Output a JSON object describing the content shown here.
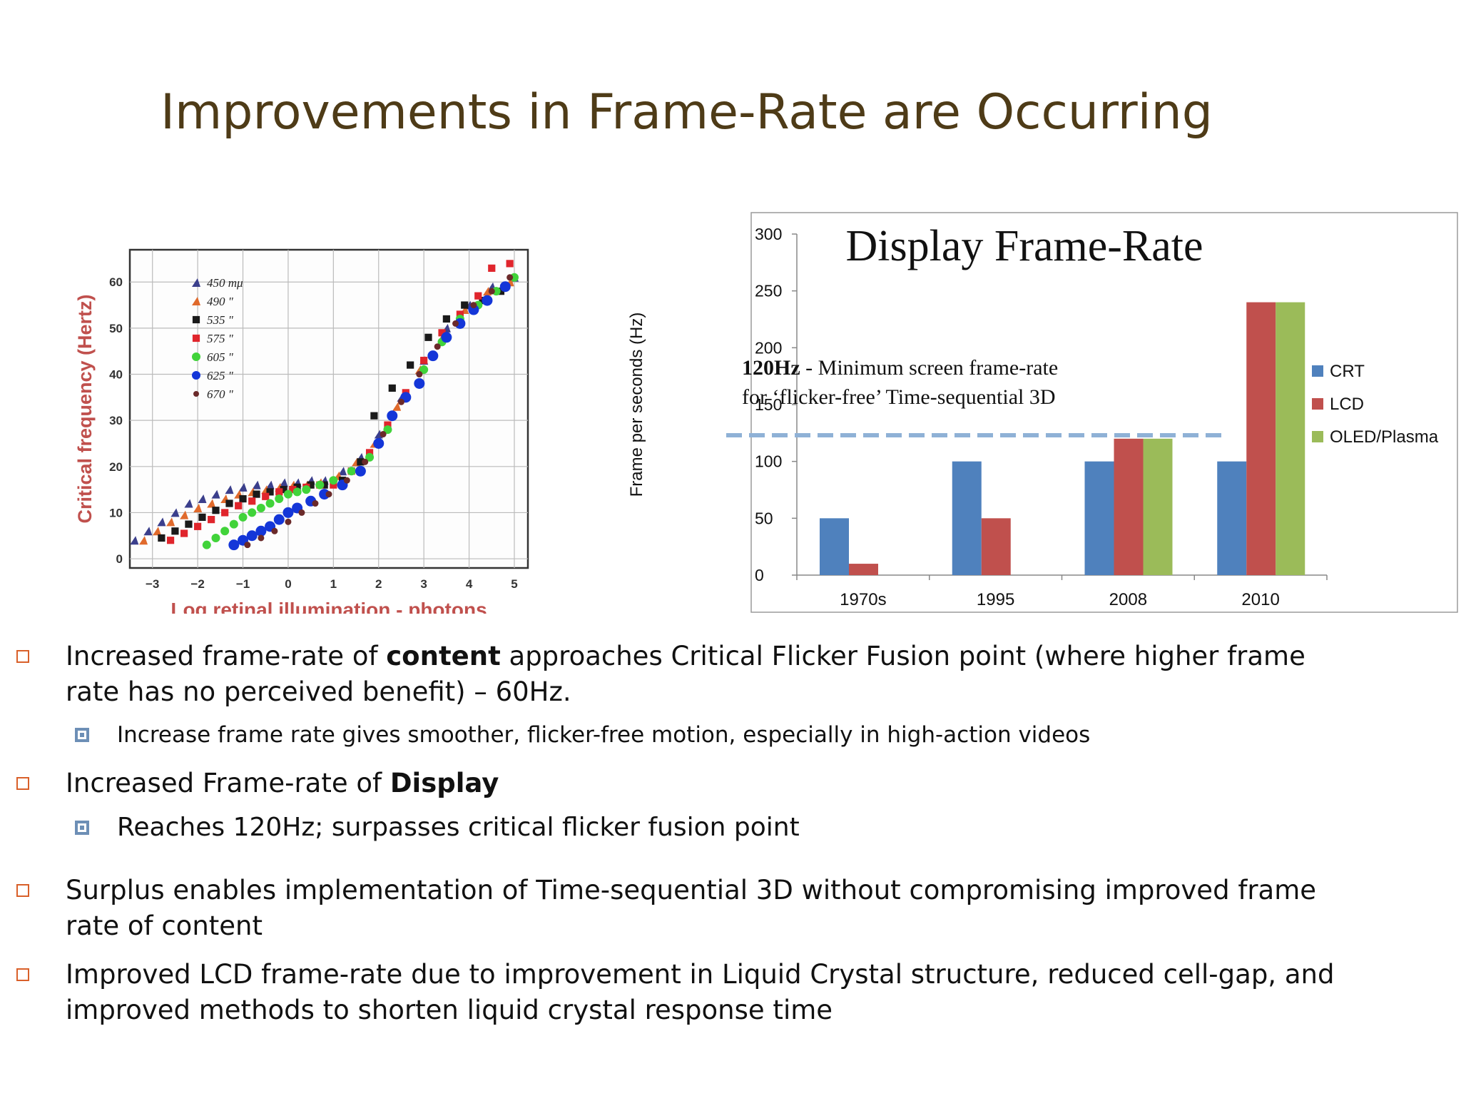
{
  "slide": {
    "title": "Improvements in Frame-Rate are Occurring"
  },
  "colors": {
    "title": "#4e3b17",
    "crt": "#4f81bd",
    "lcd": "#c0504d",
    "oled": "#9bbb59",
    "threshold": "#8fb1d6",
    "bullet_l1": "#d9602a",
    "bullet_l2": "#6d8fb6"
  },
  "bullets": [
    {
      "level": 1,
      "pre": "Increased frame-rate of ",
      "bold": "content",
      "post": " approaches Critical Flicker Fusion point (where higher frame rate has no perceived benefit) – 60Hz."
    },
    {
      "level": 2,
      "pre": "Increase frame rate gives smoother, flicker-free motion, especially in high-action videos",
      "bold": "",
      "post": ""
    },
    {
      "level": 1,
      "pre": "Increased Frame-rate of ",
      "bold": "Display",
      "post": ""
    },
    {
      "level": 2,
      "pre": "Reaches 120Hz; surpasses critical flicker fusion point",
      "bold": "",
      "post": ""
    },
    {
      "level": 1,
      "pre": "Surplus enables implementation of Time-sequential 3D without compromising improved frame rate of content",
      "bold": "",
      "post": ""
    },
    {
      "level": 1,
      "pre": "Improved LCD frame-rate due to improvement in Liquid Crystal structure, reduced cell-gap, and improved methods to shorten liquid crystal response time",
      "bold": "",
      "post": ""
    }
  ],
  "chart_data": [
    {
      "type": "scatter",
      "title": "",
      "xlabel": "Log retinal illumination - photons",
      "ylabel": "Critical frequency (Hertz)",
      "xlim": [
        -3.5,
        5.3
      ],
      "ylim": [
        -2,
        67
      ],
      "x_ticks": [
        -3,
        -2,
        -1,
        0,
        1,
        2,
        3,
        4,
        5
      ],
      "x_tick_labels": [
        "−3",
        "−2",
        "−1",
        "0",
        "1",
        "2",
        "3",
        "4",
        "5"
      ],
      "y_ticks": [
        0,
        10,
        20,
        30,
        40,
        50,
        60
      ],
      "grid": true,
      "legend_position": "top-left",
      "series": [
        {
          "name": "450 mμ",
          "marker": "triangle",
          "color": "#3b3f8c",
          "x": [
            -3.4,
            -3.1,
            -2.8,
            -2.5,
            -2.2,
            -1.9,
            -1.6,
            -1.3,
            -1.0,
            -0.7,
            -0.4,
            -0.1,
            0.2,
            0.5,
            0.8,
            1.2,
            1.6,
            2.0,
            2.5,
            3.0,
            3.5,
            4.0,
            4.5,
            5.0
          ],
          "y": [
            4,
            6,
            8,
            10,
            12,
            13,
            14,
            15,
            15.5,
            16,
            16,
            16.5,
            16.5,
            17,
            17,
            19,
            22,
            27,
            35,
            43,
            50,
            55,
            59,
            61
          ]
        },
        {
          "name": "490 \"",
          "marker": "triangle",
          "color": "#e06a2c",
          "x": [
            -3.2,
            -2.9,
            -2.6,
            -2.3,
            -2.0,
            -1.7,
            -1.4,
            -1.1,
            -0.8,
            -0.5,
            -0.2,
            0.1,
            0.4,
            0.7,
            1.1,
            1.5,
            1.9,
            2.4,
            2.9,
            3.4,
            3.9,
            4.4,
            4.9
          ],
          "y": [
            4,
            6,
            8,
            9.5,
            11,
            12,
            13,
            14,
            14.5,
            15,
            15.5,
            16,
            16,
            16.5,
            18,
            21,
            25,
            33,
            41,
            48,
            54,
            58,
            60
          ]
        },
        {
          "name": "535 \"",
          "marker": "square",
          "color": "#1a1a1a",
          "x": [
            -2.8,
            -2.5,
            -2.2,
            -1.9,
            -1.6,
            -1.3,
            -1.0,
            -0.7,
            -0.4,
            -0.1,
            0.2,
            0.5,
            0.8,
            1.2,
            1.6,
            1.9,
            2.3,
            2.7,
            3.1,
            3.5,
            3.9,
            4.3,
            4.7
          ],
          "y": [
            4.5,
            6,
            7.5,
            9,
            10.5,
            12,
            13,
            14,
            14.5,
            15,
            15.5,
            16,
            16,
            17,
            21,
            31,
            37,
            42,
            48,
            52,
            55,
            56,
            58
          ]
        },
        {
          "name": "575 \"",
          "marker": "square",
          "color": "#e0252c",
          "x": [
            -2.6,
            -2.3,
            -2.0,
            -1.7,
            -1.4,
            -1.1,
            -0.8,
            -0.5,
            -0.2,
            0.1,
            0.4,
            0.7,
            1.0,
            1.4,
            1.8,
            2.2,
            2.6,
            3.0,
            3.4,
            3.8,
            4.2,
            4.5,
            4.9
          ],
          "y": [
            4,
            5.5,
            7,
            8.5,
            10,
            11.5,
            12.5,
            13.5,
            14.5,
            15,
            15.5,
            16,
            16,
            19,
            23,
            29,
            36,
            43,
            49,
            53,
            57,
            63,
            64
          ]
        },
        {
          "name": "605 \"",
          "marker": "circle",
          "color": "#41d33a",
          "x": [
            -1.8,
            -1.6,
            -1.4,
            -1.2,
            -1.0,
            -0.8,
            -0.6,
            -0.4,
            -0.2,
            0.0,
            0.2,
            0.4,
            0.7,
            1.0,
            1.4,
            1.8,
            2.2,
            2.6,
            3.0,
            3.4,
            3.8,
            4.2,
            4.6,
            5.0
          ],
          "y": [
            3,
            4.5,
            6,
            7.5,
            9,
            10,
            11,
            12,
            13,
            14,
            14.5,
            15,
            16,
            17,
            19,
            22,
            28,
            35,
            41,
            47,
            52,
            55,
            58,
            61
          ]
        },
        {
          "name": "625 \"",
          "marker": "circle",
          "color": "#1436d8",
          "x": [
            -1.2,
            -1.0,
            -0.8,
            -0.6,
            -0.4,
            -0.2,
            0.0,
            0.2,
            0.5,
            0.8,
            1.2,
            1.6,
            2.0,
            2.3,
            2.6,
            2.9,
            3.2,
            3.5,
            3.8,
            4.1,
            4.4,
            4.8
          ],
          "y": [
            3,
            4,
            5,
            6,
            7,
            8.5,
            10,
            11,
            12.5,
            14,
            16,
            19,
            25,
            31,
            35,
            38,
            44,
            48,
            51,
            54,
            56,
            59
          ]
        },
        {
          "name": "670 \"",
          "marker": "circle",
          "color": "#6b2a2a",
          "x": [
            -0.9,
            -0.6,
            -0.3,
            0.0,
            0.3,
            0.6,
            0.9,
            1.3,
            1.7,
            2.1,
            2.5,
            2.9,
            3.3,
            3.7,
            4.1,
            4.5,
            4.9
          ],
          "y": [
            3,
            4.5,
            6,
            8,
            10,
            12,
            14,
            17,
            21,
            27,
            34,
            40,
            46,
            51,
            55,
            58,
            61
          ]
        }
      ]
    },
    {
      "type": "bar",
      "title": "Display Frame-Rate",
      "xlabel": "",
      "ylabel": "Frame per seconds (Hz)",
      "ylim": [
        0,
        300
      ],
      "y_ticks": [
        0,
        50,
        100,
        150,
        200,
        250,
        300
      ],
      "categories": [
        "1970s",
        "1995",
        "2008",
        "2010"
      ],
      "legend_position": "right",
      "series": [
        {
          "name": "CRT",
          "color": "#4f81bd",
          "values": [
            50,
            100,
            100,
            100
          ]
        },
        {
          "name": "LCD",
          "color": "#c0504d",
          "values": [
            10,
            50,
            120,
            240
          ]
        },
        {
          "name": "OLED/Plasma",
          "color": "#9bbb59",
          "values": [
            null,
            null,
            120,
            240
          ]
        }
      ],
      "threshold_value": 123,
      "annotation": {
        "bold": "120Hz",
        "line1_rest": " - Minimum screen frame-rate",
        "line2": "for ‘flicker-free’ Time-sequential 3D"
      }
    }
  ]
}
